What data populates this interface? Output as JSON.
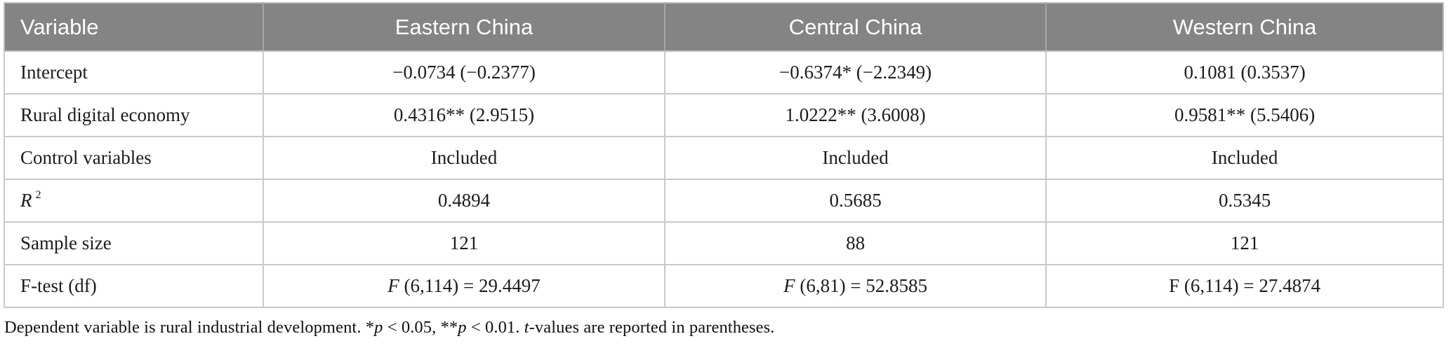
{
  "colors": {
    "header_bg": "#848484",
    "header_text": "#ffffff",
    "header_divider": "#a6a6a6",
    "border": "#bfbfbf"
  },
  "table": {
    "columns": [
      "Variable",
      "Eastern China",
      "Central China",
      "Western China"
    ],
    "rows": [
      {
        "label": [
          {
            "text": "Intercept"
          }
        ],
        "cells": [
          [
            {
              "text": "−0.0734 (−0.2377)"
            }
          ],
          [
            {
              "text": "−0.6374* (−2.2349)"
            }
          ],
          [
            {
              "text": "0.1081 (0.3537)"
            }
          ]
        ]
      },
      {
        "label": [
          {
            "text": "Rural digital economy"
          }
        ],
        "cells": [
          [
            {
              "text": "0.4316** (2.9515)"
            }
          ],
          [
            {
              "text": "1.0222** (3.6008)"
            }
          ],
          [
            {
              "text": "0.9581** (5.5406)"
            }
          ]
        ]
      },
      {
        "label": [
          {
            "text": "Control variables"
          }
        ],
        "cells": [
          [
            {
              "text": "Included"
            }
          ],
          [
            {
              "text": "Included"
            }
          ],
          [
            {
              "text": "Included"
            }
          ]
        ]
      },
      {
        "label": [
          {
            "text": "R",
            "italic": true
          },
          {
            "text": "2",
            "sup": true
          }
        ],
        "cells": [
          [
            {
              "text": "0.4894"
            }
          ],
          [
            {
              "text": "0.5685"
            }
          ],
          [
            {
              "text": "0.5345"
            }
          ]
        ]
      },
      {
        "label": [
          {
            "text": "Sample size"
          }
        ],
        "cells": [
          [
            {
              "text": "121"
            }
          ],
          [
            {
              "text": "88"
            }
          ],
          [
            {
              "text": "121"
            }
          ]
        ]
      },
      {
        "label": [
          {
            "text": "F-test (df)"
          }
        ],
        "cells": [
          [
            {
              "text": "F",
              "italic": true
            },
            {
              "text": " (6,114) = 29.4497"
            }
          ],
          [
            {
              "text": "F",
              "italic": true
            },
            {
              "text": " (6,81) = 52.8585"
            }
          ],
          [
            {
              "text": "F (6,114) = 27.4874"
            }
          ]
        ]
      }
    ]
  },
  "footnote": [
    {
      "text": "Dependent variable is rural industrial development. *"
    },
    {
      "text": "p",
      "italic": true
    },
    {
      "text": " < 0.05, **"
    },
    {
      "text": "p",
      "italic": true
    },
    {
      "text": " < 0.01. "
    },
    {
      "text": "t",
      "italic": true
    },
    {
      "text": "-values are reported in parentheses."
    }
  ]
}
